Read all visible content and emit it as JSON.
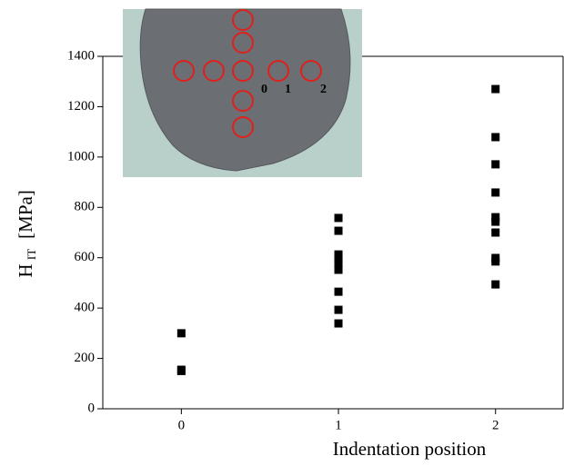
{
  "chart_data": {
    "type": "scatter",
    "x_label": "Indentation position",
    "y_label": "H",
    "y_label_sub": "IT",
    "y_label_unit": "[MPa]",
    "inset_labels": [
      "0",
      "1",
      "2"
    ],
    "series": [
      {
        "color": "#000000",
        "x": [
          0,
          0,
          0,
          1,
          1,
          1,
          1,
          1,
          1,
          1,
          1,
          1,
          2,
          2,
          2,
          2,
          2,
          2,
          2,
          2,
          2,
          2
        ],
        "values": [
          300,
          155,
          150,
          758,
          707,
          613,
          595,
          577,
          552,
          465,
          393,
          339,
          1270,
          1079,
          971,
          859,
          761,
          743,
          700,
          599,
          585,
          494
        ]
      }
    ],
    "xlim": [
      -0.5,
      2.43
    ],
    "xticks": [
      0,
      1,
      2
    ],
    "ylim": [
      0,
      1400
    ],
    "yticks": [
      0,
      200,
      400,
      600,
      800,
      1000,
      1200,
      1400
    ]
  }
}
